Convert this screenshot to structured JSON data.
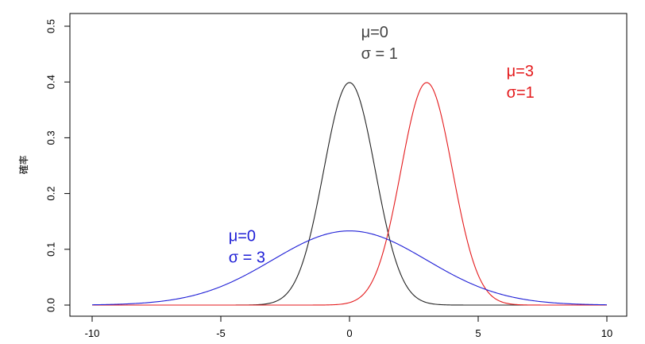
{
  "chart_data": {
    "type": "line",
    "title": "",
    "xlabel": "",
    "ylabel": "確率",
    "xlim": [
      -10,
      10
    ],
    "ylim": [
      0,
      0.5
    ],
    "x_ticks": [
      -10,
      -5,
      0,
      5,
      10
    ],
    "y_ticks": [
      0.0,
      0.1,
      0.2,
      0.3,
      0.4,
      0.5
    ],
    "x_tick_labels": [
      "-10",
      "-5",
      "0",
      "5",
      "10"
    ],
    "y_tick_labels": [
      "0.0",
      "0.1",
      "0.2",
      "0.3",
      "0.4",
      "0.5"
    ],
    "grid": false,
    "series": [
      {
        "mu": 0,
        "sigma": 1,
        "color": "#222222",
        "label_lines": [
          "μ=0",
          "σ = 1"
        ],
        "label_color": "#444444",
        "label_anchor": [
          0.45,
          0.48
        ]
      },
      {
        "mu": 3,
        "sigma": 1,
        "color": "#e41a1c",
        "label_lines": [
          "μ=3",
          "σ=1"
        ],
        "label_color": "#e41a1c",
        "label_anchor": [
          6.1,
          0.41
        ]
      },
      {
        "mu": 0,
        "sigma": 3,
        "color": "#1f1fd6",
        "label_lines": [
          "μ=0",
          "σ = 3"
        ],
        "label_color": "#1f1fd6",
        "label_anchor": [
          -4.7,
          0.115
        ]
      }
    ]
  }
}
